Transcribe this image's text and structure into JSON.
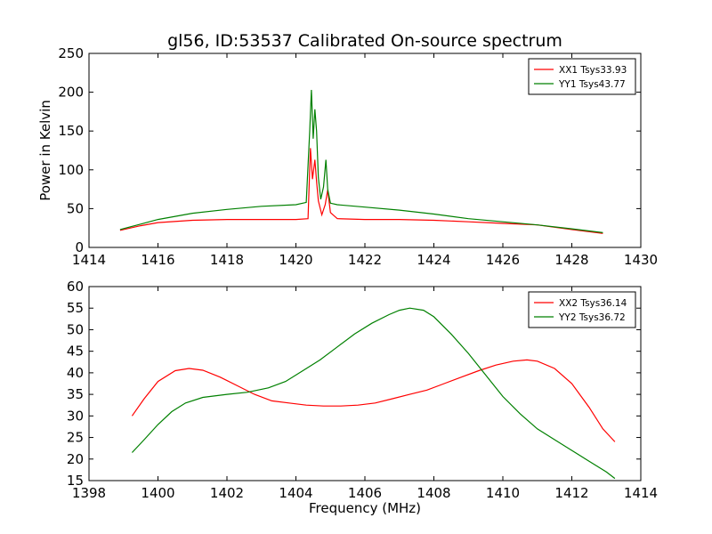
{
  "chart_data": [
    {
      "type": "line",
      "title": "gl56, ID:53537 Calibrated On-source spectrum",
      "xlabel": "",
      "ylabel": "Power in Kelvin",
      "xlim": [
        1414,
        1430
      ],
      "ylim": [
        0,
        250
      ],
      "xticks": [
        "1414",
        "1416",
        "1418",
        "1420",
        "1422",
        "1424",
        "1426",
        "1428",
        "1430"
      ],
      "yticks": [
        "0",
        "50",
        "100",
        "150",
        "200",
        "250"
      ],
      "grid": false,
      "legend": "top-right",
      "series": [
        {
          "name": "XX1 Tsys33.93",
          "color": "#ff0000",
          "x": [
            1414.9,
            1415.5,
            1416.0,
            1417.0,
            1418.0,
            1419.0,
            1420.0,
            1420.35,
            1420.42,
            1420.48,
            1420.55,
            1420.6,
            1420.65,
            1420.75,
            1420.85,
            1420.92,
            1421.0,
            1421.2,
            1422.0,
            1423.0,
            1424.0,
            1425.0,
            1426.0,
            1427.0,
            1428.0,
            1428.9
          ],
          "y": [
            22,
            28,
            32,
            35,
            36,
            36,
            36,
            37,
            128,
            88,
            113,
            85,
            60,
            42,
            55,
            74,
            45,
            37,
            36,
            36,
            35,
            33,
            31,
            29,
            23,
            18
          ]
        },
        {
          "name": "YY1 Tsys43.77",
          "color": "#008000",
          "x": [
            1414.9,
            1415.5,
            1416.0,
            1417.0,
            1418.0,
            1419.0,
            1420.0,
            1420.3,
            1420.4,
            1420.45,
            1420.5,
            1420.55,
            1420.6,
            1420.65,
            1420.72,
            1420.8,
            1420.87,
            1420.92,
            1421.0,
            1421.2,
            1422.0,
            1423.0,
            1424.0,
            1425.0,
            1426.0,
            1427.0,
            1428.0,
            1428.9
          ],
          "y": [
            23,
            30,
            36,
            44,
            49,
            53,
            55,
            58,
            150,
            203,
            140,
            178,
            150,
            90,
            62,
            78,
            113,
            75,
            57,
            55,
            52,
            48,
            43,
            37,
            33,
            29,
            24,
            19
          ]
        }
      ]
    },
    {
      "type": "line",
      "title": "",
      "xlabel": "Frequency (MHz)",
      "ylabel": "",
      "xlim": [
        1398,
        1414
      ],
      "ylim": [
        15,
        60
      ],
      "xticks": [
        "1398",
        "1400",
        "1402",
        "1404",
        "1406",
        "1408",
        "1410",
        "1412",
        "1414"
      ],
      "yticks": [
        "15",
        "20",
        "25",
        "30",
        "35",
        "40",
        "45",
        "50",
        "55",
        "60"
      ],
      "grid": false,
      "legend": "top-right",
      "series": [
        {
          "name": "XX2 Tsys36.14",
          "color": "#ff0000",
          "x": [
            1399.25,
            1399.6,
            1400.0,
            1400.5,
            1400.9,
            1401.3,
            1401.8,
            1402.3,
            1402.8,
            1403.3,
            1403.8,
            1404.3,
            1404.8,
            1405.3,
            1405.8,
            1406.3,
            1406.8,
            1407.3,
            1407.8,
            1408.3,
            1408.8,
            1409.3,
            1409.8,
            1410.3,
            1410.7,
            1411.0,
            1411.5,
            1412.0,
            1412.5,
            1412.9,
            1413.25
          ],
          "y": [
            30,
            34,
            38,
            40.5,
            41,
            40.6,
            39,
            37,
            35,
            33.5,
            33,
            32.5,
            32.3,
            32.3,
            32.5,
            33,
            34,
            35,
            36,
            37.5,
            39,
            40.5,
            41.8,
            42.7,
            43,
            42.7,
            41,
            37.5,
            32,
            27,
            24
          ]
        },
        {
          "name": "YY2 Tsys36.72",
          "color": "#008000",
          "x": [
            1399.25,
            1399.6,
            1400.0,
            1400.4,
            1400.8,
            1401.3,
            1402.0,
            1402.6,
            1403.2,
            1403.7,
            1404.2,
            1404.7,
            1405.2,
            1405.7,
            1406.2,
            1406.7,
            1407.0,
            1407.3,
            1407.7,
            1408.0,
            1408.5,
            1409.0,
            1409.5,
            1410.0,
            1410.5,
            1411.0,
            1411.5,
            1412.0,
            1412.5,
            1413.0,
            1413.25
          ],
          "y": [
            21.5,
            24.5,
            28,
            31,
            33,
            34.3,
            35,
            35.5,
            36.5,
            38,
            40.5,
            43,
            46,
            49,
            51.5,
            53.5,
            54.5,
            55,
            54.5,
            53,
            49,
            44.5,
            39.5,
            34.5,
            30.5,
            27,
            24.5,
            22,
            19.5,
            17,
            15.5
          ]
        }
      ]
    }
  ]
}
